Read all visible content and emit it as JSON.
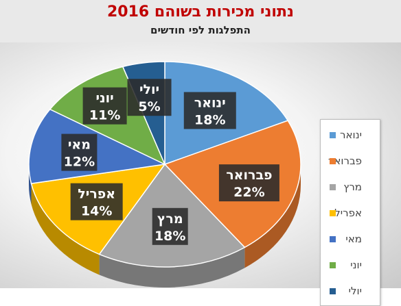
{
  "header": {
    "title": "נתוני מכירות בשוהם 2016",
    "subtitle": "התפלגות לפי חודשים"
  },
  "chart_data": {
    "type": "pie",
    "style": "3d",
    "categories": [
      "ינואר",
      "פברואר",
      "מרץ",
      "אפריל",
      "מאי",
      "יוני",
      "יולי"
    ],
    "values": [
      18,
      22,
      18,
      14,
      12,
      11,
      5
    ],
    "labels": [
      "18%",
      "22%",
      "18%",
      "14%",
      "12%",
      "11%",
      "5%"
    ],
    "colors": [
      "#5b9bd5",
      "#ed7d31",
      "#a5a5a5",
      "#ffc000",
      "#4472c4",
      "#70ad47",
      "#255e91"
    ],
    "legend_position": "right"
  }
}
